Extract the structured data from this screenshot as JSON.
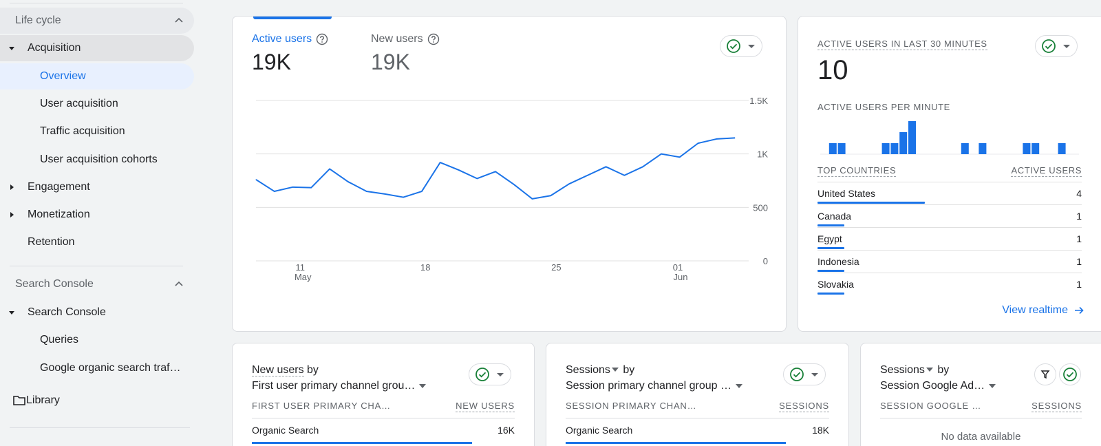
{
  "colors": {
    "accent": "#1a73e8",
    "check_green": "#188038"
  },
  "sidebar": {
    "lifecycle": "Life cycle",
    "acquisition": "Acquisition",
    "overview": "Overview",
    "user_acquisition": "User acquisition",
    "traffic_acquisition": "Traffic acquisition",
    "user_acquisition_cohorts": "User acquisition cohorts",
    "engagement": "Engagement",
    "monetization": "Monetization",
    "retention": "Retention",
    "search_console_section": "Search Console",
    "search_console": "Search Console",
    "queries": "Queries",
    "google_organic": "Google organic search traf…",
    "library": "Library"
  },
  "main_chart": {
    "active_users_label": "Active users",
    "active_users_value": "19K",
    "new_users_label": "New users",
    "new_users_value": "19K"
  },
  "chart_data": {
    "type": "line",
    "series": [
      {
        "values": [
          760,
          650,
          690,
          685,
          860,
          740,
          650,
          625,
          595,
          650,
          920,
          850,
          770,
          835,
          715,
          580,
          610,
          720,
          800,
          880,
          800,
          880,
          1000,
          970,
          1100,
          1140,
          1150
        ]
      }
    ],
    "x_tick_labels": [
      {
        "day": "11",
        "month": "May"
      },
      {
        "day": "18",
        "month": ""
      },
      {
        "day": "25",
        "month": ""
      },
      {
        "day": "01",
        "month": "Jun"
      }
    ],
    "y_tick_labels": [
      "1.5K",
      "1K",
      "500",
      "0"
    ],
    "ylim": [
      0,
      1500
    ],
    "grid": true
  },
  "realtime": {
    "title": "ACTIVE USERS IN LAST 30 MINUTES",
    "value": "10",
    "per_minute_label": "ACTIVE USERS PER MINUTE",
    "per_minute": [
      0,
      1,
      1,
      0,
      0,
      0,
      0,
      1,
      1,
      2,
      3,
      0,
      0,
      0,
      0,
      0,
      1,
      0,
      1,
      0,
      0,
      0,
      0,
      1,
      1,
      0,
      0,
      1,
      0
    ],
    "countries_header": "TOP COUNTRIES",
    "users_header": "ACTIVE USERS",
    "countries": [
      {
        "name": "United States",
        "value": "4",
        "share": 1.0
      },
      {
        "name": "Canada",
        "value": "1",
        "share": 0.25
      },
      {
        "name": "Egypt",
        "value": "1",
        "share": 0.25
      },
      {
        "name": "Indonesia",
        "value": "1",
        "share": 0.25
      },
      {
        "name": "Slovakia",
        "value": "1",
        "share": 0.25
      }
    ],
    "view_realtime": "View realtime"
  },
  "card_new_users": {
    "title": "New users",
    "by": " by",
    "dimension": "First user primary channel grou…",
    "col1": "FIRST USER PRIMARY CHA…",
    "col2": "NEW USERS",
    "row_label": "Organic Search",
    "row_value": "16K",
    "row_share": 0.85
  },
  "card_sessions": {
    "title": "Sessions",
    "by": " by",
    "dimension": "Session primary channel group …",
    "col1": "SESSION PRIMARY CHAN…",
    "col2": "SESSIONS",
    "row_label": "Organic Search",
    "row_value": "18K",
    "row_share": 0.85
  },
  "card_ads": {
    "title": "Sessions",
    "by": " by",
    "dimension": "Session Google Ad…",
    "col1": "SESSION GOOGLE …",
    "col2": "SESSIONS",
    "no_data": "No data available"
  }
}
